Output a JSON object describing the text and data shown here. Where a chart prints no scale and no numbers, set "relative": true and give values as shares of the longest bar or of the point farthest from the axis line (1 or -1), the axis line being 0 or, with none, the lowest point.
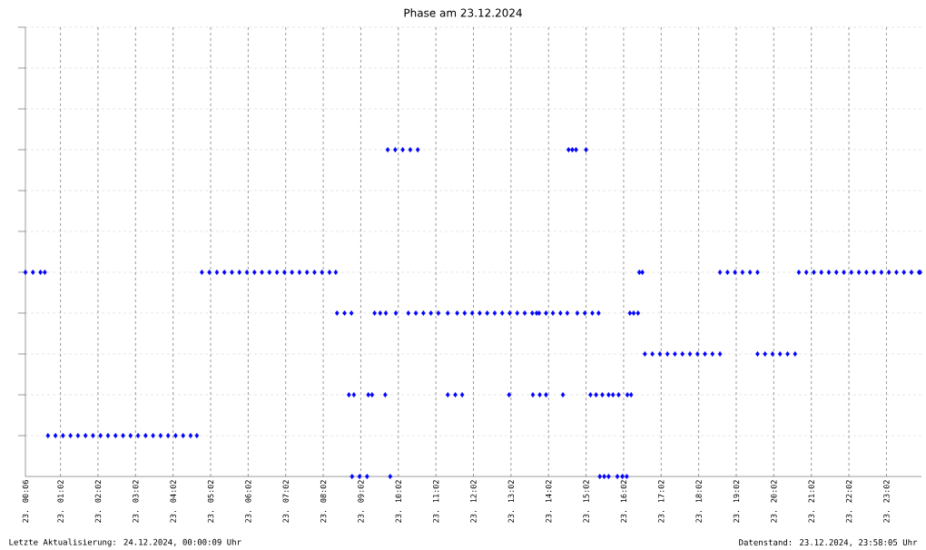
{
  "chart_data": {
    "type": "scatter",
    "title": "Phase am 23.12.2024",
    "relative": true,
    "marker": "diamond",
    "grid": true,
    "xlim": [
      "2024-12-23T00:06",
      "2024-12-23T23:58"
    ],
    "xticks": [
      {
        "value": "2024-12-23T00:06",
        "label": "23. 00:06"
      },
      {
        "value": "2024-12-23T01:02",
        "label": "23. 01:02"
      },
      {
        "value": "2024-12-23T02:02",
        "label": "23. 02:02"
      },
      {
        "value": "2024-12-23T03:02",
        "label": "23. 03:02"
      },
      {
        "value": "2024-12-23T04:02",
        "label": "23. 04:02"
      },
      {
        "value": "2024-12-23T05:02",
        "label": "23. 05:02"
      },
      {
        "value": "2024-12-23T06:02",
        "label": "23. 06:02"
      },
      {
        "value": "2024-12-23T07:02",
        "label": "23. 07:02"
      },
      {
        "value": "2024-12-23T08:02",
        "label": "23. 08:02"
      },
      {
        "value": "2024-12-23T09:02",
        "label": "23. 09:02"
      },
      {
        "value": "2024-12-23T10:02",
        "label": "23. 10:02"
      },
      {
        "value": "2024-12-23T11:02",
        "label": "23. 11:02"
      },
      {
        "value": "2024-12-23T12:02",
        "label": "23. 12:02"
      },
      {
        "value": "2024-12-23T13:02",
        "label": "23. 13:02"
      },
      {
        "value": "2024-12-23T14:02",
        "label": "23. 14:02"
      },
      {
        "value": "2024-12-23T15:02",
        "label": "23. 15:02"
      },
      {
        "value": "2024-12-23T16:02",
        "label": "23. 16:02"
      },
      {
        "value": "2024-12-23T17:02",
        "label": "23. 17:02"
      },
      {
        "value": "2024-12-23T18:02",
        "label": "23. 18:02"
      },
      {
        "value": "2024-12-23T19:02",
        "label": "23. 19:02"
      },
      {
        "value": "2024-12-23T20:02",
        "label": "23. 20:02"
      },
      {
        "value": "2024-12-23T21:02",
        "label": "23. 21:02"
      },
      {
        "value": "2024-12-23T22:02",
        "label": "23. 22:02"
      },
      {
        "value": "2024-12-23T23:02",
        "label": "23. 23:02"
      }
    ],
    "annotations": [
      "Letzte Aktualisierung: 24.12.2024, 00:00:09 Uhr",
      "Datenstand: 23.12.2024, 23:58:05 Uhr"
    ],
    "series": [
      {
        "color": "#0000ff",
        "x": [
          "2024-12-23T00:06",
          "2024-12-23T00:18",
          "2024-12-23T00:30",
          "2024-12-23T00:37",
          "2024-12-23T00:42",
          "2024-12-23T00:54",
          "2024-12-23T01:06",
          "2024-12-23T01:18",
          "2024-12-23T01:30",
          "2024-12-23T01:42",
          "2024-12-23T01:54",
          "2024-12-23T02:06",
          "2024-12-23T02:18",
          "2024-12-23T02:30",
          "2024-12-23T02:42",
          "2024-12-23T02:54",
          "2024-12-23T03:06",
          "2024-12-23T03:18",
          "2024-12-23T03:30",
          "2024-12-23T03:42",
          "2024-12-23T03:54",
          "2024-12-23T04:06",
          "2024-12-23T04:18",
          "2024-12-23T04:30",
          "2024-12-23T04:40",
          "2024-12-23T04:48",
          "2024-12-23T05:00",
          "2024-12-23T05:12",
          "2024-12-23T05:24",
          "2024-12-23T05:36",
          "2024-12-23T05:48",
          "2024-12-23T06:00",
          "2024-12-23T06:12",
          "2024-12-23T06:24",
          "2024-12-23T06:36",
          "2024-12-23T06:48",
          "2024-12-23T07:00",
          "2024-12-23T07:12",
          "2024-12-23T07:24",
          "2024-12-23T07:36",
          "2024-12-23T07:48",
          "2024-12-23T08:00",
          "2024-12-23T08:12",
          "2024-12-23T08:22",
          "2024-12-23T08:24",
          "2024-12-23T08:36",
          "2024-12-23T08:47",
          "2024-12-23T08:43",
          "2024-12-23T08:51",
          "2024-12-23T08:48",
          "2024-12-23T09:00",
          "2024-12-23T09:12",
          "2024-12-23T09:14",
          "2024-12-23T09:20",
          "2024-12-23T09:41",
          "2024-12-23T09:24",
          "2024-12-23T09:33",
          "2024-12-23T09:42",
          "2024-12-23T09:49",
          "2024-12-23T09:45",
          "2024-12-23T09:57",
          "2024-12-23T10:09",
          "2024-12-23T10:21",
          "2024-12-23T10:33",
          "2024-12-23T09:58",
          "2024-12-23T10:18",
          "2024-12-23T10:30",
          "2024-12-23T10:42",
          "2024-12-23T10:54",
          "2024-12-23T11:06",
          "2024-12-23T11:21",
          "2024-12-23T11:21",
          "2024-12-23T11:33",
          "2024-12-23T11:44",
          "2024-12-23T11:36",
          "2024-12-23T11:48",
          "2024-12-23T12:00",
          "2024-12-23T12:12",
          "2024-12-23T12:24",
          "2024-12-23T12:36",
          "2024-12-23T12:48",
          "2024-12-23T13:00",
          "2024-12-23T13:12",
          "2024-12-23T13:24",
          "2024-12-23T13:36",
          "2024-12-23T13:43",
          "2024-12-23T13:47",
          "2024-12-23T13:58",
          "2024-12-23T14:09",
          "2024-12-23T14:21",
          "2024-12-23T14:32",
          "2024-12-23T14:48",
          "2024-12-23T15:00",
          "2024-12-23T15:12",
          "2024-12-23T15:22",
          "2024-12-23T12:59",
          "2024-12-23T13:37",
          "2024-12-23T13:48",
          "2024-12-23T13:58",
          "2024-12-23T14:25",
          "2024-12-23T15:09",
          "2024-12-23T15:18",
          "2024-12-23T15:28",
          "2024-12-23T15:38",
          "2024-12-23T15:45",
          "2024-12-23T15:54",
          "2024-12-23T16:08",
          "2024-12-23T16:14",
          "2024-12-23T14:34",
          "2024-12-23T14:40",
          "2024-12-23T14:46",
          "2024-12-23T15:02",
          "2024-12-23T15:24",
          "2024-12-23T15:31",
          "2024-12-23T15:38",
          "2024-12-23T15:52",
          "2024-12-23T16:00",
          "2024-12-23T16:07",
          "2024-12-23T16:12",
          "2024-12-23T16:18",
          "2024-12-23T16:25",
          "2024-12-23T16:27",
          "2024-12-23T16:32",
          "2024-12-23T16:36",
          "2024-12-23T16:48",
          "2024-12-23T17:00",
          "2024-12-23T17:12",
          "2024-12-23T17:24",
          "2024-12-23T17:36",
          "2024-12-23T17:48",
          "2024-12-23T18:00",
          "2024-12-23T18:12",
          "2024-12-23T18:24",
          "2024-12-23T18:36",
          "2024-12-23T18:36",
          "2024-12-23T18:48",
          "2024-12-23T19:00",
          "2024-12-23T19:12",
          "2024-12-23T19:24",
          "2024-12-23T19:36",
          "2024-12-23T19:36",
          "2024-12-23T19:48",
          "2024-12-23T20:00",
          "2024-12-23T20:12",
          "2024-12-23T20:24",
          "2024-12-23T20:36",
          "2024-12-23T20:42",
          "2024-12-23T20:54",
          "2024-12-23T21:06",
          "2024-12-23T21:18",
          "2024-12-23T21:30",
          "2024-12-23T21:42",
          "2024-12-23T21:54",
          "2024-12-23T22:06",
          "2024-12-23T22:18",
          "2024-12-23T22:30",
          "2024-12-23T22:42",
          "2024-12-23T22:54",
          "2024-12-23T23:06",
          "2024-12-23T23:18",
          "2024-12-23T23:30",
          "2024-12-23T23:42",
          "2024-12-23T23:54",
          "2024-12-23T23:56"
        ],
        "values": [
          0.625,
          0.625,
          0.625,
          0.625,
          0.125,
          0.125,
          0.125,
          0.125,
          0.125,
          0.125,
          0.125,
          0.125,
          0.125,
          0.125,
          0.125,
          0.125,
          0.125,
          0.125,
          0.125,
          0.125,
          0.125,
          0.125,
          0.125,
          0.125,
          0.125,
          0.625,
          0.625,
          0.625,
          0.625,
          0.625,
          0.625,
          0.625,
          0.625,
          0.625,
          0.625,
          0.625,
          0.625,
          0.625,
          0.625,
          0.625,
          0.625,
          0.625,
          0.625,
          0.625,
          0.5,
          0.5,
          0.5,
          0.25,
          0.25,
          0,
          0,
          0,
          0.25,
          0.25,
          0.25,
          0.5,
          0.5,
          0.5,
          0,
          1,
          1,
          1,
          1,
          1,
          0.5,
          0.5,
          0.5,
          0.5,
          0.5,
          0.5,
          0.5,
          0.25,
          0.25,
          0.25,
          0.5,
          0.5,
          0.5,
          0.5,
          0.5,
          0.5,
          0.5,
          0.5,
          0.5,
          0.5,
          0.5,
          0.5,
          0.5,
          0.5,
          0.5,
          0.5,
          0.5,
          0.5,
          0.5,
          0.5,
          0.5,
          0.25,
          0.25,
          0.25,
          0.25,
          0.25,
          0.25,
          0.25,
          0.25,
          0.25,
          0.25,
          0.25,
          0.25,
          0.25,
          1,
          1,
          1,
          1,
          0,
          0,
          0,
          0,
          0,
          0,
          0.5,
          0.5,
          0.5,
          0.625,
          0.625,
          0.375,
          0.375,
          0.375,
          0.375,
          0.375,
          0.375,
          0.375,
          0.375,
          0.375,
          0.375,
          0.375,
          0.625,
          0.625,
          0.625,
          0.625,
          0.625,
          0.625,
          0.375,
          0.375,
          0.375,
          0.375,
          0.375,
          0.375,
          0.625,
          0.625,
          0.625,
          0.625,
          0.625,
          0.625,
          0.625,
          0.625,
          0.625,
          0.625,
          0.625,
          0.625,
          0.625,
          0.625,
          0.625,
          0.625,
          0.625,
          0.625
        ]
      }
    ]
  }
}
